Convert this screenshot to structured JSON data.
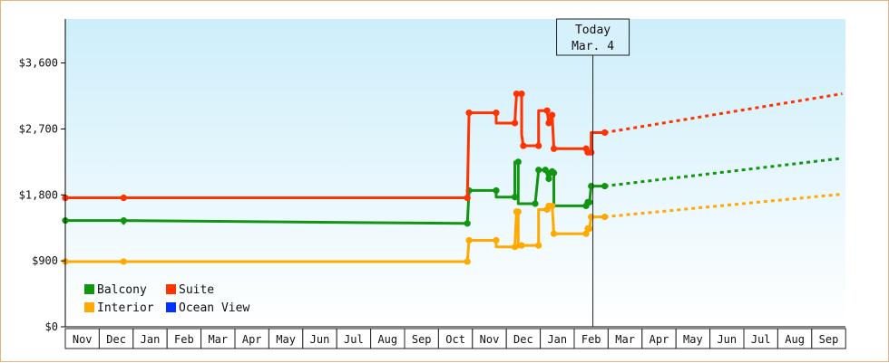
{
  "chart_data": {
    "type": "line",
    "x_ticks": [
      "Nov",
      "Dec",
      "Jan",
      "Feb",
      "Mar",
      "Apr",
      "May",
      "Jun",
      "Jul",
      "Aug",
      "Sep",
      "Oct",
      "Nov",
      "Dec",
      "Jan",
      "Feb",
      "Mar",
      "Apr",
      "May",
      "Jun",
      "Jul",
      "Aug",
      "Sep"
    ],
    "y_ticks": [
      "$0",
      "$900",
      "$1,800",
      "$2,700",
      "$3,600"
    ],
    "ylim": [
      0,
      4200
    ],
    "today_label_line1": "Today",
    "today_label_line2": "Mar. 4",
    "today_x": 15.55,
    "grid": false,
    "legend_position": "bottom-left",
    "series": [
      {
        "name": "Balcony",
        "color": "#129612",
        "points": [
          [
            0,
            1450
          ],
          [
            1.72,
            1450
          ],
          [
            1.72,
            1410
          ],
          [
            1.72,
            1450
          ],
          [
            11.85,
            1410
          ],
          [
            11.9,
            1860
          ],
          [
            12.7,
            1860
          ],
          [
            12.7,
            1770
          ],
          [
            13.25,
            1770
          ],
          [
            13.25,
            2250
          ],
          [
            13.35,
            2250
          ],
          [
            13.35,
            1680
          ],
          [
            13.85,
            1680
          ],
          [
            13.95,
            2140
          ],
          [
            14.15,
            2140
          ],
          [
            14.25,
            2020
          ],
          [
            14.3,
            2100
          ],
          [
            14.35,
            2120
          ],
          [
            14.4,
            2100
          ],
          [
            14.4,
            1650
          ],
          [
            15.35,
            1650
          ],
          [
            15.4,
            1700
          ],
          [
            15.45,
            1700
          ],
          [
            15.5,
            1920
          ],
          [
            15.9,
            1920
          ]
        ],
        "projection": [
          [
            15.9,
            1920
          ],
          [
            22.9,
            2300
          ]
        ]
      },
      {
        "name": "Suite",
        "color": "#ff3300",
        "points": [
          [
            0,
            1760
          ],
          [
            1.72,
            1760
          ],
          [
            11.85,
            1760
          ],
          [
            11.9,
            2920
          ],
          [
            12.7,
            2920
          ],
          [
            12.7,
            2780
          ],
          [
            13.25,
            2780
          ],
          [
            13.3,
            3180
          ],
          [
            13.45,
            3180
          ],
          [
            13.45,
            2620
          ],
          [
            13.5,
            2470
          ],
          [
            13.95,
            2470
          ],
          [
            13.95,
            2950
          ],
          [
            14.2,
            2950
          ],
          [
            14.25,
            2780
          ],
          [
            14.35,
            2890
          ],
          [
            14.4,
            2430
          ],
          [
            15.35,
            2430
          ],
          [
            15.4,
            2380
          ],
          [
            15.5,
            2380
          ],
          [
            15.5,
            2650
          ],
          [
            15.9,
            2650
          ]
        ],
        "projection": [
          [
            15.9,
            2650
          ],
          [
            22.9,
            3180
          ]
        ]
      },
      {
        "name": "Interior",
        "color": "#ffaa00",
        "points": [
          [
            0,
            890
          ],
          [
            1.72,
            890
          ],
          [
            11.85,
            890
          ],
          [
            11.9,
            1180
          ],
          [
            12.7,
            1180
          ],
          [
            12.7,
            1090
          ],
          [
            13.25,
            1090
          ],
          [
            13.3,
            1570
          ],
          [
            13.35,
            1570
          ],
          [
            13.35,
            1090
          ],
          [
            13.45,
            1110
          ],
          [
            13.95,
            1110
          ],
          [
            13.95,
            1600
          ],
          [
            14.2,
            1600
          ],
          [
            14.25,
            1650
          ],
          [
            14.35,
            1650
          ],
          [
            14.4,
            1270
          ],
          [
            15.35,
            1270
          ],
          [
            15.4,
            1340
          ],
          [
            15.45,
            1340
          ],
          [
            15.5,
            1500
          ],
          [
            15.9,
            1500
          ]
        ],
        "projection": [
          [
            15.9,
            1500
          ],
          [
            22.9,
            1810
          ]
        ]
      },
      {
        "name": "Ocean View",
        "color": "#0033ff",
        "points": [],
        "projection": []
      }
    ]
  }
}
